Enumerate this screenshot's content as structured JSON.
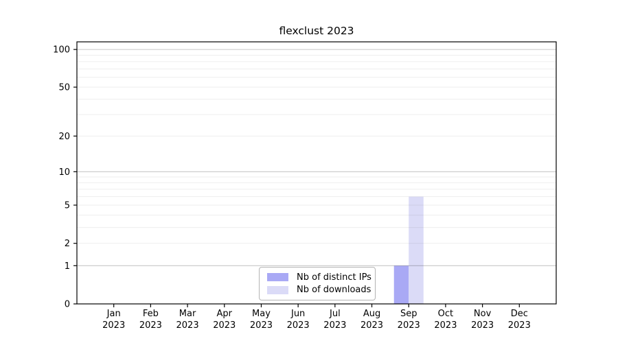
{
  "title": "flexclust 2023",
  "chart_data": {
    "type": "bar",
    "title": "flexclust 2023",
    "months": [
      "Jan",
      "Feb",
      "Mar",
      "Apr",
      "May",
      "Jun",
      "Jul",
      "Aug",
      "Sep",
      "Oct",
      "Nov",
      "Dec"
    ],
    "year": "2023",
    "series": [
      {
        "name": "Nb of distinct IPs",
        "color": "#a9a9f5",
        "values": [
          0,
          0,
          0,
          0,
          0,
          0,
          0,
          0,
          1,
          0,
          0,
          0
        ]
      },
      {
        "name": "Nb of downloads",
        "color": "#dbdbf7",
        "values": [
          0,
          0,
          0,
          0,
          0,
          0,
          0,
          0,
          6,
          0,
          0,
          0
        ]
      }
    ],
    "y_axis": {
      "scale": "log1p",
      "tick_values": [
        0,
        1,
        2,
        5,
        10,
        20,
        50,
        100
      ],
      "tick_labels": [
        "0",
        "1",
        "2",
        "5",
        "10",
        "20",
        "50",
        "100"
      ],
      "major_gridlines": [
        1,
        10,
        100
      ],
      "minor_gridlines": [
        2,
        3,
        4,
        5,
        6,
        7,
        8,
        9,
        20,
        30,
        40,
        50,
        60,
        70,
        80,
        90
      ],
      "ylim": [
        0,
        115
      ]
    },
    "legend": {
      "position": "lower center"
    },
    "grid": true,
    "colors": {
      "background": "#ffffff",
      "axis": "#000000",
      "major_grid": "rgba(0,0,0,0.22)",
      "minor_grid": "rgba(0,0,0,0.065)",
      "text": "#000000",
      "legend_border": "#b4b4b4"
    }
  }
}
